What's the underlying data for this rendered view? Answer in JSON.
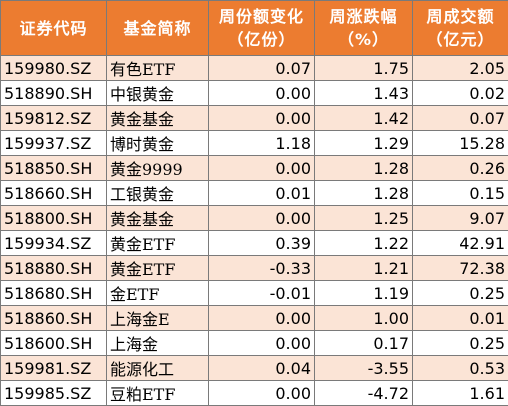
{
  "headers": [
    {
      "line1": "证券代码",
      "line2": ""
    },
    {
      "line1": "基金简称",
      "line2": ""
    },
    {
      "line1": "周份额变化",
      "line2": "（亿份）"
    },
    {
      "line1": "周涨跌幅",
      "line2": "（%）"
    },
    {
      "line1": "周成交额",
      "line2": "（亿元）"
    }
  ],
  "rows": [
    {
      "code": "159980.SZ",
      "name": "有色ETF",
      "share_change": "0.07",
      "pct_change": "1.75",
      "turnover": "2.05"
    },
    {
      "code": "518890.SH",
      "name": "中银黄金",
      "share_change": "0.00",
      "pct_change": "1.43",
      "turnover": "0.02"
    },
    {
      "code": "159812.SZ",
      "name": "黄金基金",
      "share_change": "0.00",
      "pct_change": "1.42",
      "turnover": "0.07"
    },
    {
      "code": "159937.SZ",
      "name": "博时黄金",
      "share_change": "1.18",
      "pct_change": "1.29",
      "turnover": "15.28"
    },
    {
      "code": "518850.SH",
      "name": "黄金9999",
      "share_change": "0.00",
      "pct_change": "1.28",
      "turnover": "0.26"
    },
    {
      "code": "518660.SH",
      "name": "工银黄金",
      "share_change": "0.01",
      "pct_change": "1.28",
      "turnover": "0.15"
    },
    {
      "code": "518800.SH",
      "name": "黄金基金",
      "share_change": "0.00",
      "pct_change": "1.25",
      "turnover": "9.07"
    },
    {
      "code": "159934.SZ",
      "name": "黄金ETF",
      "share_change": "0.39",
      "pct_change": "1.22",
      "turnover": "42.91"
    },
    {
      "code": "518880.SH",
      "name": "黄金ETF",
      "share_change": "-0.33",
      "pct_change": "1.21",
      "turnover": "72.38"
    },
    {
      "code": "518680.SH",
      "name": "金ETF",
      "share_change": "-0.01",
      "pct_change": "1.19",
      "turnover": "0.25"
    },
    {
      "code": "518860.SH",
      "name": "上海金E",
      "share_change": "0.00",
      "pct_change": "1.00",
      "turnover": "0.01"
    },
    {
      "code": "518600.SH",
      "name": "上海金",
      "share_change": "0.00",
      "pct_change": "0.17",
      "turnover": "0.25"
    },
    {
      "code": "159981.SZ",
      "name": "能源化工",
      "share_change": "0.04",
      "pct_change": "-3.55",
      "turnover": "0.53"
    },
    {
      "code": "159985.SZ",
      "name": "豆粕ETF",
      "share_change": "0.00",
      "pct_change": "-4.72",
      "turnover": "1.61"
    }
  ],
  "colors": {
    "header_bg": "#ec7c30",
    "header_text": "#ffffff",
    "row_alt_bg": "#fbe4d6",
    "row_bg": "#ffffff",
    "border": "#7a7a7a"
  }
}
